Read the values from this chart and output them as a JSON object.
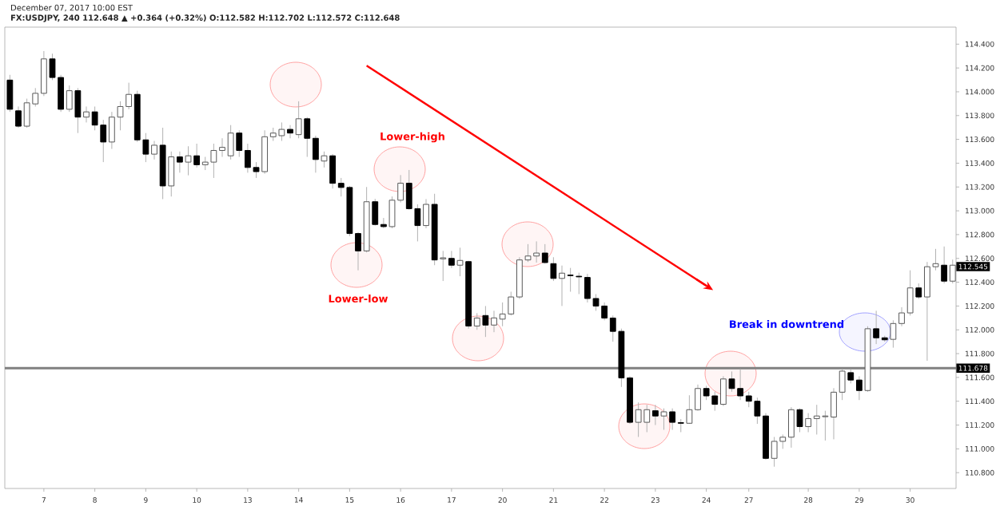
{
  "chart_data": {
    "type": "candlestick",
    "title": "FX:USDJPY, 240  112.648 ▲ +0.364 (+0.32%)  O:112.582 H:112.702 L:112.572 C:112.648",
    "subtitle": "December 07, 2017 10:00 EST",
    "categories": [
      null,
      null,
      null,
      null,
      "7",
      null,
      null,
      null,
      null,
      null,
      "8",
      null,
      null,
      null,
      null,
      null,
      "9",
      null,
      null,
      null,
      null,
      null,
      "10",
      null,
      null,
      null,
      null,
      null,
      "13",
      null,
      null,
      null,
      null,
      null,
      "14",
      null,
      null,
      null,
      null,
      null,
      "15",
      null,
      null,
      null,
      null,
      null,
      "16",
      null,
      null,
      null,
      null,
      null,
      "17",
      null,
      null,
      null,
      null,
      null,
      "20",
      null,
      null,
      null,
      null,
      null,
      "21",
      null,
      null,
      null,
      null,
      null,
      "22",
      null,
      null,
      null,
      null,
      null,
      "23",
      null,
      null,
      null,
      null,
      null,
      "24",
      null,
      null,
      null,
      null,
      "27",
      null,
      null,
      null,
      null,
      null,
      null,
      "28",
      null,
      null,
      null,
      null,
      null,
      "29",
      null,
      null,
      null,
      null,
      null,
      "30",
      null,
      null,
      null,
      null,
      null
    ],
    "ohlc": [
      [
        114.098,
        114.142,
        113.831,
        113.853
      ],
      [
        113.84,
        113.876,
        113.698,
        113.711
      ],
      [
        113.711,
        113.942,
        113.698,
        113.907
      ],
      [
        113.898,
        114.031,
        113.876,
        113.987
      ],
      [
        113.987,
        114.342,
        113.964,
        114.276
      ],
      [
        114.276,
        114.32,
        114.098,
        114.12
      ],
      [
        114.12,
        114.142,
        113.831,
        113.853
      ],
      [
        113.853,
        114.053,
        113.831,
        114.009
      ],
      [
        114.009,
        114.031,
        113.653,
        113.787
      ],
      [
        113.787,
        113.876,
        113.742,
        113.831
      ],
      [
        113.831,
        113.876,
        113.676,
        113.72
      ],
      [
        113.72,
        113.764,
        113.409,
        113.578
      ],
      [
        113.578,
        113.831,
        113.52,
        113.787
      ],
      [
        113.787,
        113.92,
        113.676,
        113.876
      ],
      [
        113.876,
        114.076,
        113.853,
        113.978
      ],
      [
        113.978,
        114.009,
        113.578,
        113.596
      ],
      [
        113.596,
        113.653,
        113.409,
        113.476
      ],
      [
        113.476,
        113.587,
        113.431,
        113.551
      ],
      [
        113.551,
        113.698,
        113.098,
        113.209
      ],
      [
        113.209,
        113.498,
        113.12,
        113.453
      ],
      [
        113.453,
        113.498,
        113.32,
        113.409
      ],
      [
        113.409,
        113.542,
        113.298,
        113.462
      ],
      [
        113.462,
        113.564,
        113.364,
        113.387
      ],
      [
        113.387,
        113.453,
        113.342,
        113.409
      ],
      [
        113.409,
        113.564,
        113.276,
        113.507
      ],
      [
        113.507,
        113.609,
        113.453,
        113.533
      ],
      [
        113.462,
        113.72,
        113.431,
        113.653
      ],
      [
        113.653,
        113.676,
        113.453,
        113.507
      ],
      [
        113.507,
        113.564,
        113.32,
        113.364
      ],
      [
        113.364,
        113.409,
        113.276,
        113.329
      ],
      [
        113.329,
        113.676,
        113.311,
        113.622
      ],
      [
        113.622,
        113.698,
        113.587,
        113.653
      ],
      [
        113.631,
        113.742,
        113.587,
        113.684
      ],
      [
        113.684,
        113.72,
        113.609,
        113.653
      ],
      [
        113.64,
        113.92,
        113.609,
        113.773
      ],
      [
        113.773,
        113.787,
        113.453,
        113.609
      ],
      [
        113.609,
        113.631,
        113.32,
        113.431
      ],
      [
        113.418,
        113.498,
        113.364,
        113.462
      ],
      [
        113.462,
        113.476,
        113.187,
        113.231
      ],
      [
        113.231,
        113.276,
        113.12,
        113.196
      ],
      [
        113.196,
        113.209,
        112.787,
        112.809
      ],
      [
        112.809,
        112.82,
        112.5,
        112.663
      ],
      [
        112.663,
        113.2,
        112.65,
        113.076
      ],
      [
        113.076,
        113.1,
        112.876,
        112.885
      ],
      [
        112.885,
        112.94,
        112.853,
        112.867
      ],
      [
        112.867,
        113.12,
        112.853,
        113.089
      ],
      [
        113.089,
        113.3,
        113.07,
        113.232
      ],
      [
        113.232,
        113.343,
        113.009,
        113.018
      ],
      [
        113.018,
        113.054,
        112.743,
        112.876
      ],
      [
        112.876,
        113.098,
        112.853,
        113.054
      ],
      [
        113.054,
        113.143,
        112.543,
        112.587
      ],
      [
        112.596,
        112.663,
        112.41,
        112.605
      ],
      [
        112.6,
        112.663,
        112.52,
        112.543
      ],
      [
        112.543,
        112.69,
        112.45,
        112.583
      ],
      [
        112.573,
        112.58,
        112.01,
        112.032
      ],
      [
        112.032,
        112.14,
        112.0,
        112.099
      ],
      [
        112.12,
        112.2,
        111.94,
        112.04
      ],
      [
        112.04,
        112.16,
        111.98,
        112.1
      ],
      [
        112.09,
        112.23,
        112.03,
        112.133
      ],
      [
        112.133,
        112.32,
        112.12,
        112.276
      ],
      [
        112.276,
        112.61,
        112.26,
        112.587
      ],
      [
        112.587,
        112.72,
        112.57,
        112.62
      ],
      [
        112.62,
        112.743,
        112.565,
        112.645
      ],
      [
        112.645,
        112.72,
        112.556,
        112.565
      ],
      [
        112.556,
        112.61,
        112.41,
        112.432
      ],
      [
        112.432,
        112.54,
        112.2,
        112.476
      ],
      [
        112.46,
        112.52,
        112.32,
        112.455
      ],
      [
        112.45,
        112.48,
        112.3,
        112.445
      ],
      [
        112.44,
        112.47,
        112.23,
        112.263
      ],
      [
        112.263,
        112.3,
        112.16,
        112.2
      ],
      [
        112.2,
        112.23,
        112.08,
        112.099
      ],
      [
        112.099,
        112.12,
        111.9,
        111.987
      ],
      [
        111.987,
        112.01,
        111.52,
        111.596
      ],
      [
        111.596,
        111.61,
        111.21,
        111.223
      ],
      [
        111.223,
        111.39,
        111.1,
        111.329
      ],
      [
        111.223,
        111.37,
        111.14,
        111.329
      ],
      [
        111.32,
        111.37,
        111.2,
        111.276
      ],
      [
        111.276,
        111.34,
        111.16,
        111.311
      ],
      [
        111.311,
        111.34,
        111.16,
        111.223
      ],
      [
        111.22,
        111.25,
        111.14,
        111.215
      ],
      [
        111.215,
        111.45,
        111.21,
        111.329
      ],
      [
        111.329,
        111.54,
        111.32,
        111.507
      ],
      [
        111.507,
        111.53,
        111.41,
        111.445
      ],
      [
        111.445,
        111.48,
        111.32,
        111.374
      ],
      [
        111.374,
        111.61,
        111.36,
        111.587
      ],
      [
        111.587,
        111.65,
        111.48,
        111.507
      ],
      [
        111.507,
        111.67,
        111.41,
        111.445
      ],
      [
        111.445,
        111.48,
        111.35,
        111.4
      ],
      [
        111.4,
        111.43,
        111.21,
        111.276
      ],
      [
        111.276,
        111.3,
        110.91,
        110.92
      ],
      [
        110.92,
        111.1,
        110.85,
        111.063
      ],
      [
        111.063,
        111.12,
        111.0,
        111.098
      ],
      [
        111.098,
        111.35,
        111.01,
        111.329
      ],
      [
        111.329,
        111.34,
        111.14,
        111.187
      ],
      [
        111.187,
        111.3,
        111.14,
        111.254
      ],
      [
        111.254,
        111.37,
        111.12,
        111.276
      ],
      [
        111.27,
        111.32,
        111.07,
        111.276
      ],
      [
        111.267,
        111.51,
        111.08,
        111.476
      ],
      [
        111.476,
        111.67,
        111.41,
        111.653
      ],
      [
        111.64,
        111.67,
        111.55,
        111.578
      ],
      [
        111.578,
        111.61,
        111.41,
        111.49
      ],
      [
        111.49,
        112.03,
        111.48,
        112.009
      ],
      [
        112.009,
        112.16,
        111.88,
        111.933
      ],
      [
        111.933,
        111.95,
        111.9,
        111.916
      ],
      [
        111.92,
        112.08,
        111.85,
        112.053
      ],
      [
        112.053,
        112.19,
        112.03,
        112.142
      ],
      [
        112.142,
        112.5,
        112.12,
        112.352
      ],
      [
        112.352,
        112.39,
        112.26,
        112.276
      ],
      [
        112.276,
        112.57,
        111.74,
        112.53
      ],
      [
        112.53,
        112.68,
        112.5,
        112.556
      ],
      [
        112.543,
        112.7,
        112.39,
        112.409
      ],
      [
        112.409,
        112.59,
        112.39,
        112.543
      ]
    ],
    "series": [
      {
        "type": "line",
        "color": "#ff0000",
        "values": [
          null,
          null,
          null,
          null,
          null,
          null,
          null,
          null,
          null,
          null,
          null,
          null,
          null,
          null,
          null,
          null,
          null,
          null,
          null,
          null,
          null,
          null,
          null,
          null,
          null,
          null,
          null,
          null,
          null,
          null,
          null,
          null,
          null,
          null,
          null,
          null,
          null,
          null,
          null,
          null,
          null,
          null,
          114.22,
          null,
          null,
          null,
          null,
          null,
          null,
          null,
          null,
          null,
          null,
          null,
          null,
          null,
          null,
          null,
          null,
          null,
          null,
          null,
          null,
          null,
          null,
          null,
          null,
          null,
          null,
          null,
          null,
          null,
          null,
          null,
          null,
          null,
          null,
          null,
          null,
          null,
          null,
          null,
          112.37,
          null,
          null,
          null,
          null,
          null,
          null,
          null,
          null,
          null,
          null,
          null,
          null,
          null,
          null,
          null,
          null,
          null,
          null,
          null,
          null,
          null,
          null,
          null,
          null,
          null,
          null,
          null,
          null,
          null
        ]
      }
    ],
    "ref_lines": [
      {
        "axis": "y",
        "value": 111.678,
        "label": "111.678",
        "color": "#808080"
      }
    ],
    "annotations": [
      "Lower-high",
      "Lower-low",
      "Break in downtrend",
      "112.545"
    ],
    "ylim": [
      110.667,
      114.543
    ],
    "yticks": [
      {
        "value": 110.8,
        "label": "110.800"
      },
      {
        "value": 111.0,
        "label": "111.000"
      },
      {
        "value": 111.2,
        "label": "111.200"
      },
      {
        "value": 111.4,
        "label": "111.400"
      },
      {
        "value": 111.6,
        "label": "111.600"
      },
      {
        "value": 111.8,
        "label": "111.800"
      },
      {
        "value": 112.0,
        "label": "112.000"
      },
      {
        "value": 112.2,
        "label": "112.200"
      },
      {
        "value": 112.4,
        "label": "112.400"
      },
      {
        "value": 112.6,
        "label": "112.600"
      },
      {
        "value": 112.8,
        "label": "112.800"
      },
      {
        "value": 113.0,
        "label": "113.000"
      },
      {
        "value": 113.2,
        "label": "113.200"
      },
      {
        "value": 113.4,
        "label": "113.400"
      },
      {
        "value": 113.6,
        "label": "113.600"
      },
      {
        "value": 113.8,
        "label": "113.800"
      },
      {
        "value": 114.0,
        "label": "114.000"
      },
      {
        "value": 114.2,
        "label": "114.200"
      },
      {
        "value": 114.4,
        "label": "114.400"
      }
    ]
  }
}
